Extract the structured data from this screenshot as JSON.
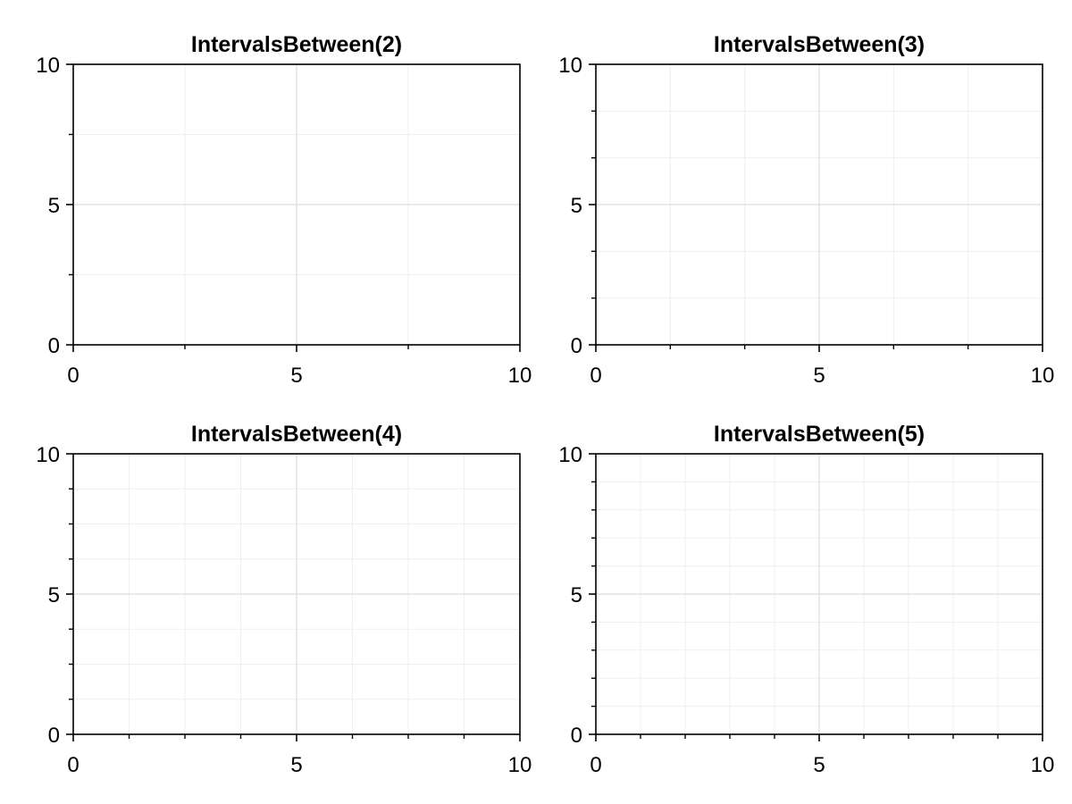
{
  "chart_data": [
    {
      "type": "scatter",
      "title": "IntervalsBetween(2)",
      "xlabel": "",
      "ylabel": "",
      "xlim": [
        0,
        10
      ],
      "ylim": [
        0,
        10
      ],
      "xticks": [
        "0",
        "5",
        "10"
      ],
      "yticks": [
        "0",
        "5",
        "10"
      ],
      "minor_intervals_between": 2,
      "grid": true,
      "minor_grid": true,
      "series": []
    },
    {
      "type": "scatter",
      "title": "IntervalsBetween(3)",
      "xlabel": "",
      "ylabel": "",
      "xlim": [
        0,
        10
      ],
      "ylim": [
        0,
        10
      ],
      "xticks": [
        "0",
        "5",
        "10"
      ],
      "yticks": [
        "0",
        "5",
        "10"
      ],
      "minor_intervals_between": 3,
      "grid": true,
      "minor_grid": true,
      "series": []
    },
    {
      "type": "scatter",
      "title": "IntervalsBetween(4)",
      "xlabel": "",
      "ylabel": "",
      "xlim": [
        0,
        10
      ],
      "ylim": [
        0,
        10
      ],
      "xticks": [
        "0",
        "5",
        "10"
      ],
      "yticks": [
        "0",
        "5",
        "10"
      ],
      "minor_intervals_between": 4,
      "grid": true,
      "minor_grid": true,
      "series": []
    },
    {
      "type": "scatter",
      "title": "IntervalsBetween(5)",
      "xlabel": "",
      "ylabel": "",
      "xlim": [
        0,
        10
      ],
      "ylim": [
        0,
        10
      ],
      "xticks": [
        "0",
        "5",
        "10"
      ],
      "yticks": [
        "0",
        "5",
        "10"
      ],
      "minor_intervals_between": 5,
      "grid": true,
      "minor_grid": true,
      "series": []
    }
  ],
  "colors": {
    "axis": "#000000",
    "major_grid": "#dcdcdc",
    "minor_grid": "#efefef",
    "background": "#ffffff"
  }
}
